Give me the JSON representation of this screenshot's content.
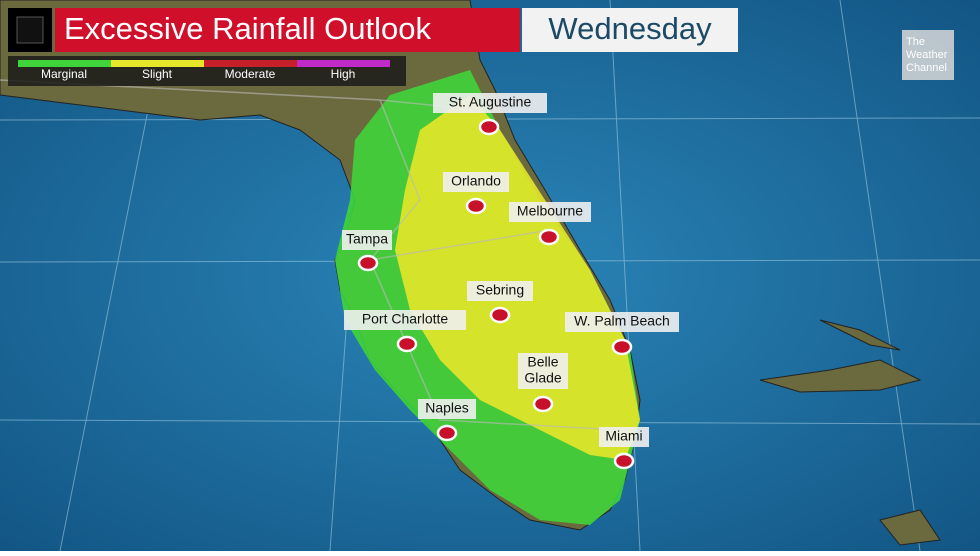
{
  "header": {
    "title": "Excessive Rainfall Outlook",
    "day": "Wednesday"
  },
  "legend": [
    {
      "label": "Marginal",
      "color": "#3fd43a"
    },
    {
      "label": "Slight",
      "color": "#e6e62a"
    },
    {
      "label": "Moderate",
      "color": "#c8202a"
    },
    {
      "label": "High",
      "color": "#c02bc8"
    }
  ],
  "logo": {
    "lines": [
      "The",
      "Weather",
      "Channel"
    ]
  },
  "cities": [
    {
      "lines": [
        "St. Augustine"
      ]
    },
    {
      "lines": [
        "Orlando"
      ]
    },
    {
      "lines": [
        "Melbourne"
      ]
    },
    {
      "lines": [
        "Tampa"
      ]
    },
    {
      "lines": [
        "Sebring"
      ]
    },
    {
      "lines": [
        "Port Charlotte"
      ]
    },
    {
      "lines": [
        "W. Palm Beach"
      ]
    },
    {
      "lines": [
        "Belle",
        "Glade"
      ]
    },
    {
      "lines": [
        "Naples"
      ]
    },
    {
      "lines": [
        "Miami"
      ]
    }
  ]
}
